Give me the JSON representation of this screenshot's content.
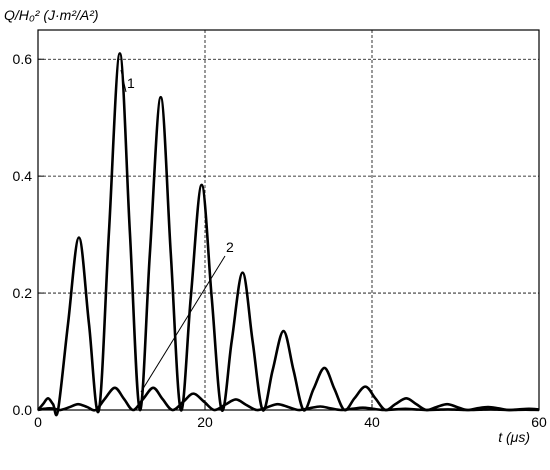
{
  "chart_data": {
    "type": "line",
    "y_label": "Q/H₀² (J·m²/A²)",
    "x_label": "t (μs)",
    "xlim": [
      0,
      60
    ],
    "xticks": [
      0,
      20,
      40,
      60
    ],
    "ylim": [
      0,
      0.65
    ],
    "yticks": [
      {
        "value": 0,
        "label": "0.0"
      },
      0.2,
      0.4,
      0.6
    ],
    "grid": true,
    "series": [
      {
        "name": "1",
        "color": "#000000",
        "x": [
          0,
          0.6,
          1.2,
          1.8,
          2.4,
          3.6,
          4.9,
          6.1,
          7.3,
          8.5,
          9.8,
          11.0,
          12.2,
          13.4,
          14.7,
          15.9,
          17.1,
          18.3,
          19.6,
          20.8,
          22.0,
          23.2,
          24.5,
          25.7,
          26.9,
          28.1,
          29.4,
          30.6,
          31.8,
          33.0,
          34.3,
          35.5,
          36.7,
          37.9,
          39.2,
          40.4,
          41.6,
          42.8,
          44.1,
          45.3,
          46.5,
          47.7,
          49.0,
          50.2,
          51.4,
          52.6,
          53.9,
          55.1,
          56.3,
          57.5,
          58.8,
          60
        ],
        "values": [
          0,
          0.01,
          0.02,
          0.01,
          0,
          0.148,
          0.295,
          0.148,
          0,
          0.305,
          0.61,
          0.305,
          0,
          0.268,
          0.535,
          0.268,
          0,
          0.193,
          0.385,
          0.193,
          0,
          0.118,
          0.235,
          0.118,
          0,
          0.068,
          0.135,
          0.068,
          0,
          0.036,
          0.072,
          0.036,
          0,
          0.02,
          0.04,
          0.02,
          0,
          0.01,
          0.02,
          0.01,
          0,
          0.005,
          0.01,
          0.005,
          0,
          0.003,
          0.005,
          0.003,
          0,
          0.001,
          0.002,
          0.001
        ]
      },
      {
        "name": "2",
        "color": "#000000",
        "x": [
          0,
          0.7,
          1.4,
          2.0,
          2.7,
          3.8,
          4.8,
          5.9,
          6.9,
          8.0,
          9.2,
          10.3,
          11.4,
          12.6,
          13.8,
          14.9,
          16.1,
          17.4,
          18.6,
          19.9,
          21.1,
          22.4,
          23.7,
          24.9,
          26.2,
          27.5,
          28.7,
          30.0,
          31.2,
          32.5,
          33.8,
          35.0,
          36.3,
          37.6,
          38.9,
          40.1,
          41.4,
          42.7,
          44.0,
          45.2,
          46.5,
          47.8,
          49.1,
          50.3,
          51.6,
          52.9,
          54.2,
          55.4,
          56.7,
          57.5,
          58.4,
          59.2,
          60
        ],
        "values": [
          0,
          0.002,
          0.003,
          0.002,
          0,
          0.005,
          0.01,
          0.005,
          0,
          0.019,
          0.038,
          0.019,
          0,
          0.019,
          0.038,
          0.019,
          0,
          0.014,
          0.028,
          0.014,
          0,
          0.009,
          0.018,
          0.009,
          0,
          0.005,
          0.01,
          0.005,
          0,
          0.003,
          0.006,
          0.003,
          0,
          0.002,
          0.004,
          0.002,
          0,
          0.001,
          0.002,
          0.001,
          0,
          0.0005,
          0.001,
          0.0005,
          0,
          0.0005,
          0.001,
          0.0005,
          0,
          0.0003,
          0.0005,
          0.0003,
          0
        ]
      }
    ]
  }
}
